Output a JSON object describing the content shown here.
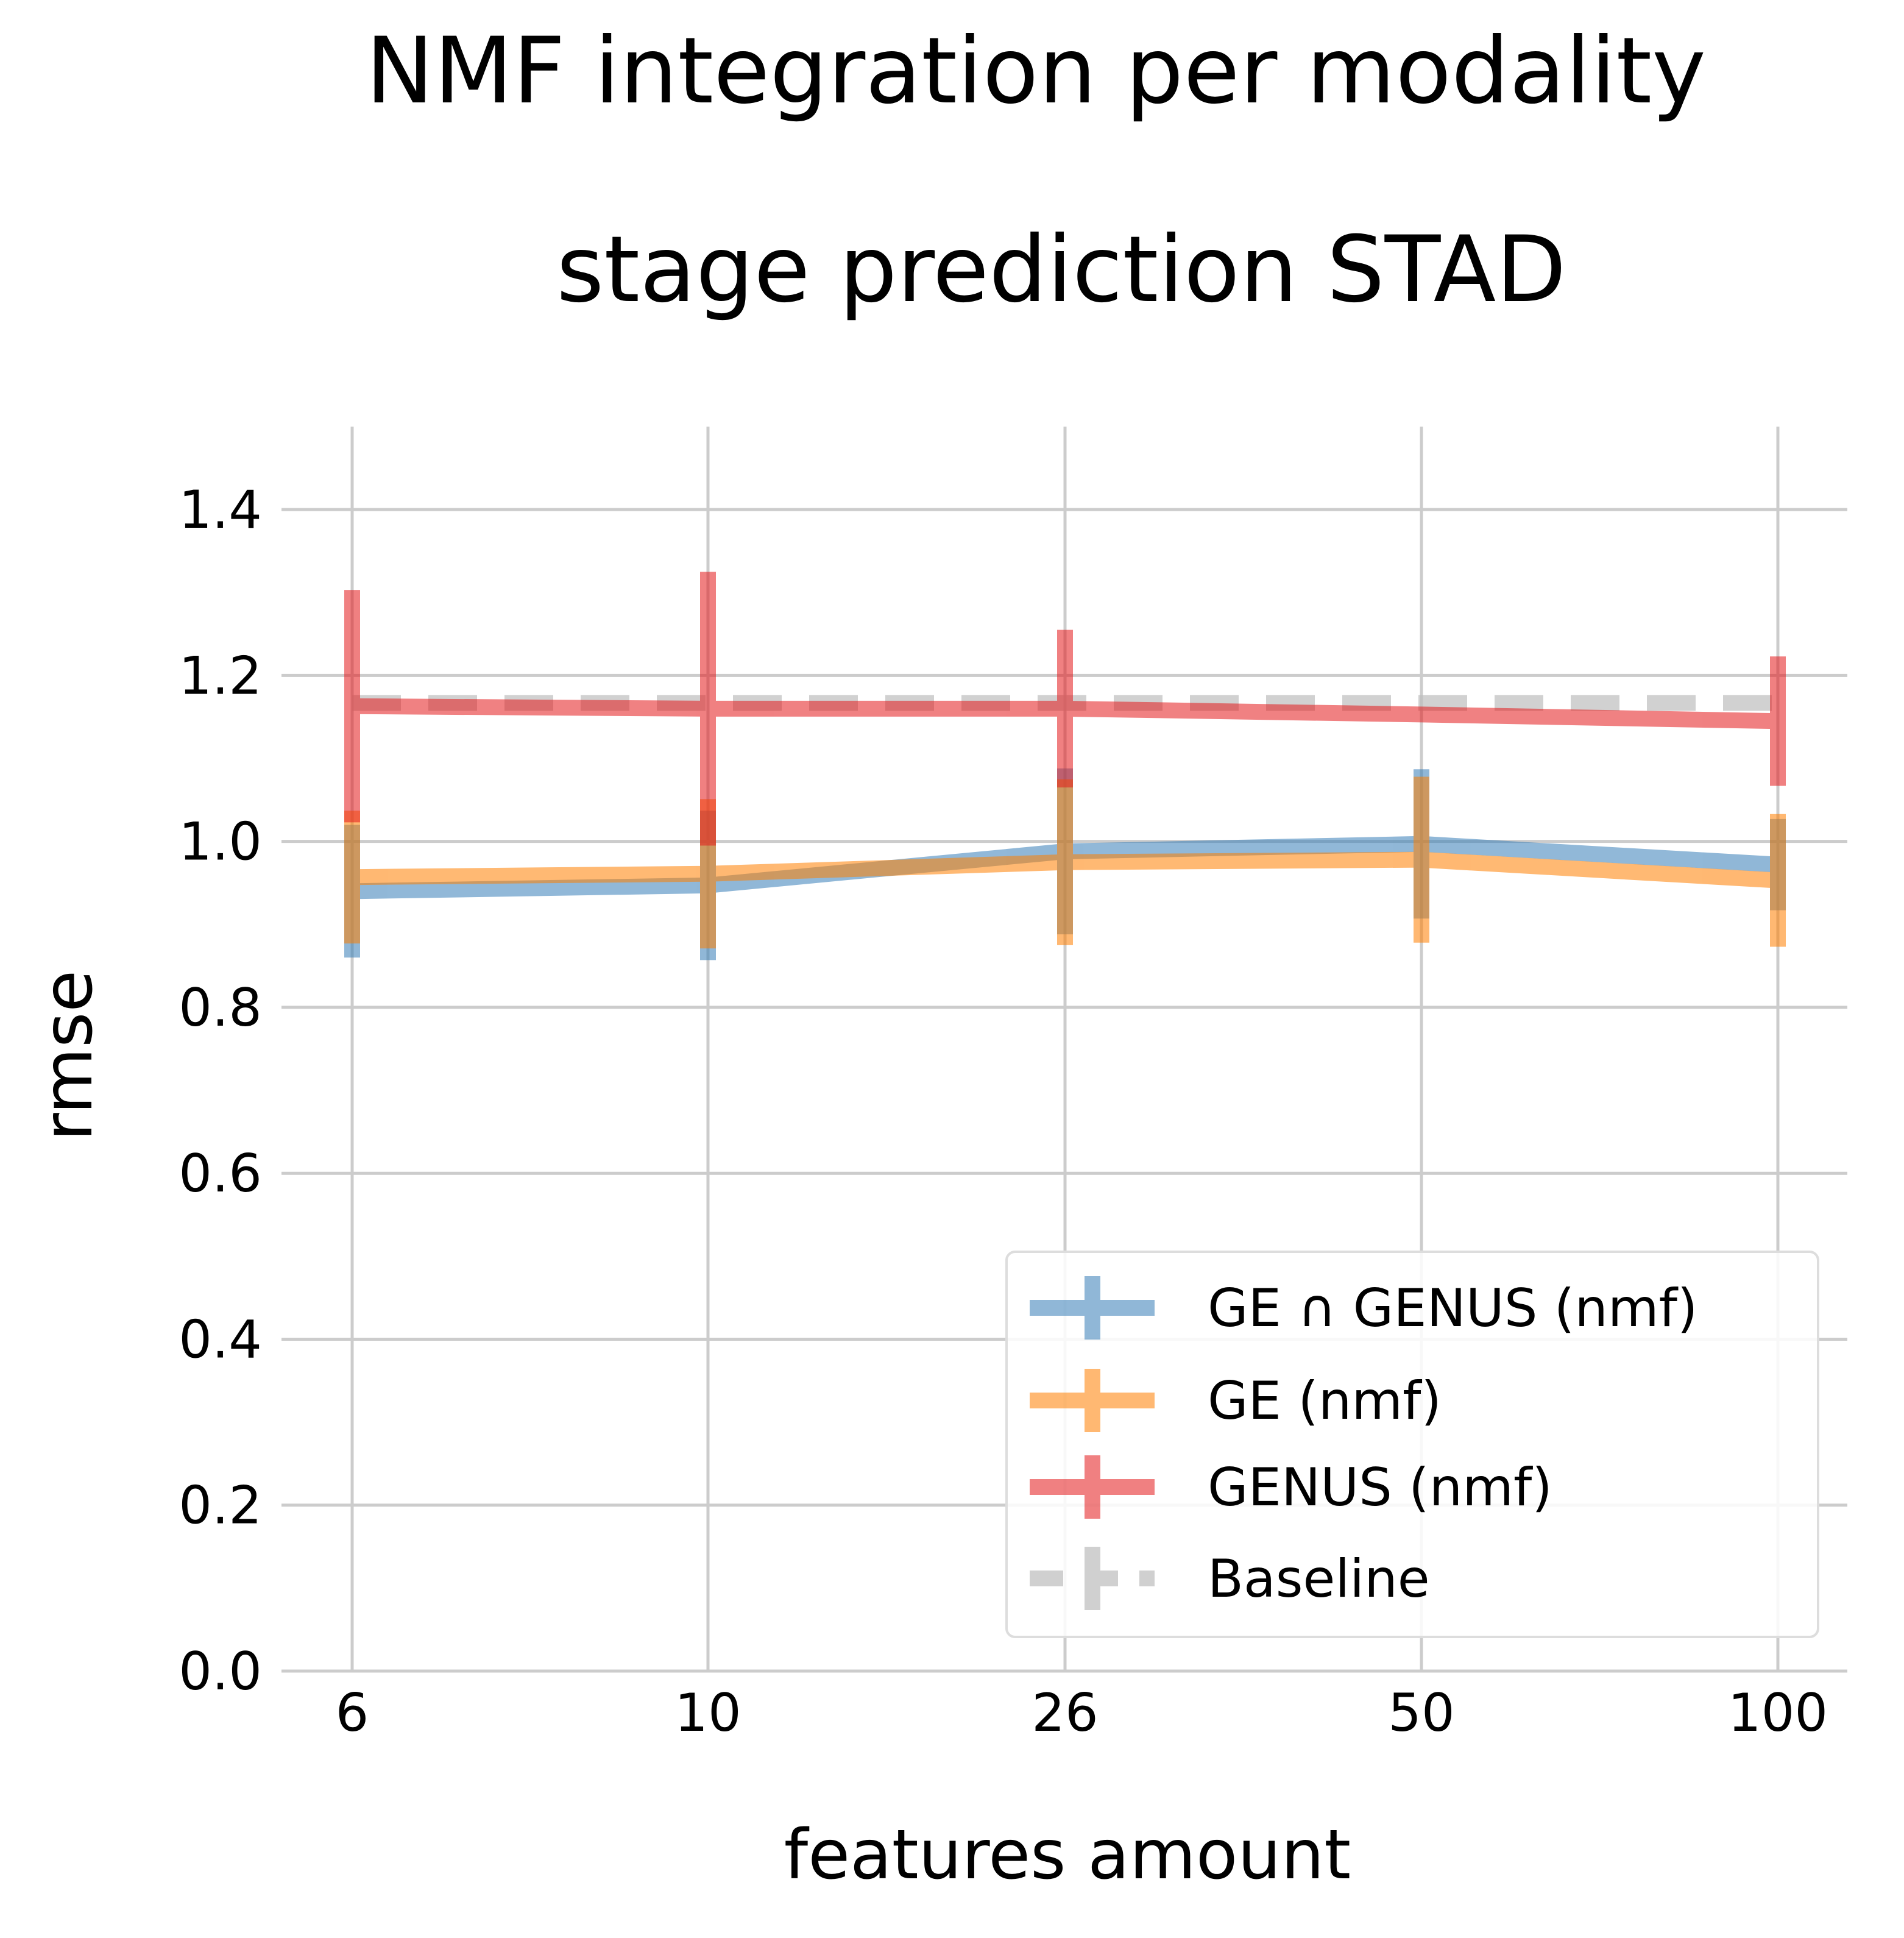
{
  "chart_data": {
    "type": "line",
    "title": "NMF integration per modality",
    "subtitle": "stage prediction STAD",
    "xlabel": "features amount",
    "ylabel": "rmse",
    "categories": [
      "6",
      "10",
      "26",
      "50",
      "100"
    ],
    "ylim": [
      0,
      1.5
    ],
    "yticks": [
      "0.0",
      "0.2",
      "0.4",
      "0.6",
      "0.8",
      "1.0",
      "1.2",
      "1.4"
    ],
    "grid": true,
    "legend_position": "lower-right",
    "series": [
      {
        "name": "GE ∩ GENUS (nmf)",
        "color": "#377eb8",
        "style": "solid",
        "values": [
          0.94,
          0.947,
          0.988,
          0.997,
          0.972
        ],
        "errors": [
          0.08,
          0.09,
          0.1,
          0.09,
          0.055
        ]
      },
      {
        "name": "GE (nmf)",
        "color": "#ff7f00",
        "style": "solid",
        "values": [
          0.957,
          0.961,
          0.975,
          0.978,
          0.953
        ],
        "errors": [
          0.08,
          0.09,
          0.1,
          0.1,
          0.08
        ]
      },
      {
        "name": "GENUS (nmf)",
        "color": "#e41a1c",
        "style": "solid",
        "values": [
          1.163,
          1.16,
          1.16,
          1.153,
          1.145
        ],
        "errors": [
          0.14,
          0.165,
          0.095,
          0.0,
          0.078
        ]
      },
      {
        "name": "Baseline",
        "color": "#bdbdbd",
        "style": "dashed",
        "values": [
          1.167,
          1.167,
          1.167,
          1.167,
          1.167
        ],
        "errors": [
          0,
          0,
          0,
          0,
          0
        ]
      }
    ]
  }
}
